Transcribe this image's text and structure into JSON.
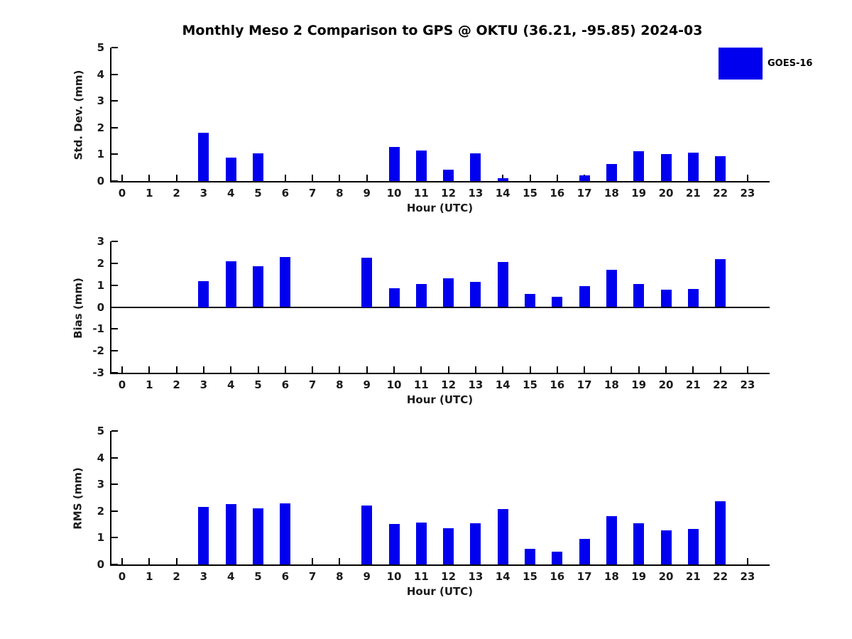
{
  "title": "Monthly Meso 2 Comparison to GPS @ OKTU (36.21, -95.85) 2024-03",
  "legend": {
    "label": "GOES-16",
    "color": "#0000EE",
    "position": "upper-right"
  },
  "xlabel": "Hour (UTC)",
  "colors": {
    "bar": "#0000EE",
    "axis": "#000000",
    "text": "#1a1a1a",
    "background": "#ffffff"
  },
  "chart_data": [
    {
      "type": "bar",
      "ylabel": "Std. Dev. (mm)",
      "xlabel": "Hour (UTC)",
      "ylim": [
        0,
        5
      ],
      "yticks": [
        0,
        1,
        2,
        3,
        4,
        5
      ],
      "grid": false,
      "categories": [
        0,
        1,
        2,
        3,
        4,
        5,
        6,
        7,
        8,
        9,
        10,
        11,
        12,
        13,
        14,
        15,
        16,
        17,
        18,
        19,
        20,
        21,
        22,
        23
      ],
      "values": [
        0,
        0,
        0,
        1.8,
        0.87,
        1.05,
        0,
        0,
        0,
        0,
        1.28,
        1.15,
        0.42,
        1.04,
        0.1,
        0,
        0,
        0.2,
        0.64,
        1.12,
        1.02,
        1.07,
        0.94,
        0
      ],
      "series_name": "GOES-16"
    },
    {
      "type": "bar",
      "ylabel": "Bias (mm)",
      "xlabel": "Hour (UTC)",
      "ylim": [
        -3,
        3
      ],
      "yticks": [
        -3,
        -2,
        -1,
        0,
        1,
        2,
        3
      ],
      "grid": false,
      "zero_line": true,
      "categories": [
        0,
        1,
        2,
        3,
        4,
        5,
        6,
        7,
        8,
        9,
        10,
        11,
        12,
        13,
        14,
        15,
        16,
        17,
        18,
        19,
        20,
        21,
        22,
        23
      ],
      "values": [
        0,
        0,
        0,
        1.2,
        2.1,
        1.85,
        2.3,
        0,
        0,
        2.25,
        0.85,
        1.05,
        1.3,
        1.15,
        2.05,
        0.6,
        0.48,
        0.95,
        1.7,
        1.05,
        0.78,
        0.83,
        2.2,
        0
      ],
      "series_name": "GOES-16"
    },
    {
      "type": "bar",
      "ylabel": "RMS (mm)",
      "xlabel": "Hour (UTC)",
      "ylim": [
        0,
        5
      ],
      "yticks": [
        0,
        1,
        2,
        3,
        4,
        5
      ],
      "grid": false,
      "categories": [
        0,
        1,
        2,
        3,
        4,
        5,
        6,
        7,
        8,
        9,
        10,
        11,
        12,
        13,
        14,
        15,
        16,
        17,
        18,
        19,
        20,
        21,
        22,
        23
      ],
      "values": [
        0,
        0,
        0,
        2.16,
        2.25,
        2.11,
        2.3,
        0,
        0,
        2.22,
        1.52,
        1.56,
        1.35,
        1.53,
        2.08,
        0.58,
        0.47,
        0.95,
        1.8,
        1.53,
        1.27,
        1.34,
        2.38,
        0
      ],
      "series_name": "GOES-16"
    }
  ]
}
